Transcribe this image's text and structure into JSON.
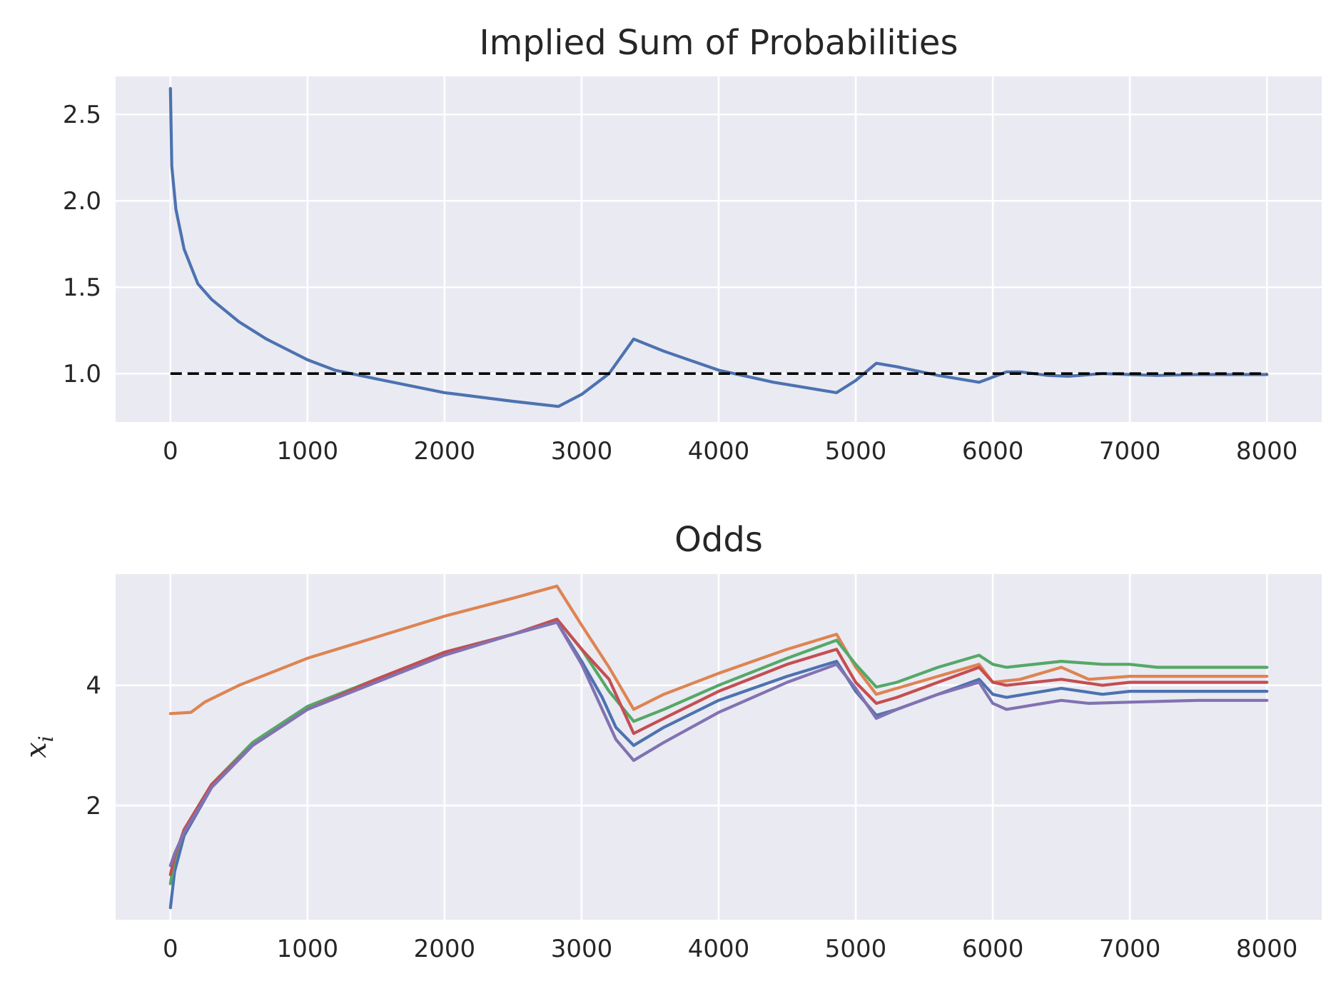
{
  "chart_data": [
    {
      "type": "line",
      "title": "Implied Sum of Probabilities",
      "xlabel": "",
      "ylabel": "",
      "xlim": [
        -400,
        8400
      ],
      "ylim": [
        0.72,
        2.72
      ],
      "xticks": [
        0,
        1000,
        2000,
        3000,
        4000,
        5000,
        6000,
        7000,
        8000
      ],
      "yticks": [
        1.0,
        1.5,
        2.0,
        2.5
      ],
      "xtick_labels": [
        "0",
        "1000",
        "2000",
        "3000",
        "4000",
        "5000",
        "6000",
        "7000",
        "8000"
      ],
      "ytick_labels": [
        "1.0",
        "1.5",
        "2.0",
        "2.5"
      ],
      "grid": true,
      "series": [
        {
          "color": "#4c72b0",
          "style": "solid",
          "points": [
            [
              0,
              2.65
            ],
            [
              10,
              2.2
            ],
            [
              40,
              1.95
            ],
            [
              100,
              1.72
            ],
            [
              200,
              1.52
            ],
            [
              300,
              1.43
            ],
            [
              500,
              1.3
            ],
            [
              700,
              1.2
            ],
            [
              1000,
              1.08
            ],
            [
              1200,
              1.02
            ],
            [
              1500,
              0.97
            ],
            [
              2000,
              0.89
            ],
            [
              2500,
              0.84
            ],
            [
              2830,
              0.81
            ],
            [
              3000,
              0.88
            ],
            [
              3200,
              1.0
            ],
            [
              3380,
              1.2
            ],
            [
              3600,
              1.13
            ],
            [
              4000,
              1.02
            ],
            [
              4400,
              0.95
            ],
            [
              4860,
              0.89
            ],
            [
              5000,
              0.96
            ],
            [
              5150,
              1.06
            ],
            [
              5300,
              1.04
            ],
            [
              5600,
              0.99
            ],
            [
              5900,
              0.95
            ],
            [
              6000,
              0.98
            ],
            [
              6100,
              1.01
            ],
            [
              6200,
              1.01
            ],
            [
              6400,
              0.99
            ],
            [
              6550,
              0.985
            ],
            [
              6800,
              1.0
            ],
            [
              7000,
              0.995
            ],
            [
              7200,
              0.99
            ],
            [
              7500,
              0.995
            ],
            [
              8000,
              0.995
            ]
          ]
        },
        {
          "color": "#000000",
          "style": "dashed",
          "points": [
            [
              0,
              1.0
            ],
            [
              8000,
              1.0
            ]
          ]
        }
      ]
    },
    {
      "type": "line",
      "title": "Odds",
      "xlabel": "",
      "ylabel": "x",
      "ylabel_sub": "i",
      "xlim": [
        -400,
        8400
      ],
      "ylim": [
        0.1,
        5.85
      ],
      "xticks": [
        0,
        1000,
        2000,
        3000,
        4000,
        5000,
        6000,
        7000,
        8000
      ],
      "yticks": [
        2,
        4
      ],
      "xtick_labels": [
        "0",
        "1000",
        "2000",
        "3000",
        "4000",
        "5000",
        "6000",
        "7000",
        "8000"
      ],
      "ytick_labels": [
        "2",
        "4"
      ],
      "grid": true,
      "series": [
        {
          "color": "#4c72b0",
          "points": [
            [
              0,
              0.3
            ],
            [
              30,
              0.9
            ],
            [
              100,
              1.5
            ],
            [
              300,
              2.3
            ],
            [
              600,
              3.0
            ],
            [
              1000,
              3.6
            ],
            [
              1500,
              4.1
            ],
            [
              2000,
              4.55
            ],
            [
              2500,
              4.85
            ],
            [
              2820,
              5.05
            ],
            [
              3000,
              4.4
            ],
            [
              3150,
              3.8
            ],
            [
              3250,
              3.3
            ],
            [
              3380,
              3.0
            ],
            [
              3600,
              3.3
            ],
            [
              4000,
              3.75
            ],
            [
              4500,
              4.15
            ],
            [
              4860,
              4.4
            ],
            [
              5000,
              3.9
            ],
            [
              5150,
              3.5
            ],
            [
              5300,
              3.6
            ],
            [
              5600,
              3.85
            ],
            [
              5900,
              4.1
            ],
            [
              6000,
              3.85
            ],
            [
              6100,
              3.8
            ],
            [
              6500,
              3.95
            ],
            [
              6800,
              3.85
            ],
            [
              7000,
              3.9
            ],
            [
              7500,
              3.9
            ],
            [
              8000,
              3.9
            ]
          ]
        },
        {
          "color": "#dd8452",
          "points": [
            [
              0,
              3.53
            ],
            [
              150,
              3.55
            ],
            [
              250,
              3.72
            ],
            [
              500,
              4.0
            ],
            [
              1000,
              4.45
            ],
            [
              1500,
              4.8
            ],
            [
              2000,
              5.15
            ],
            [
              2500,
              5.45
            ],
            [
              2820,
              5.65
            ],
            [
              3000,
              5.0
            ],
            [
              3200,
              4.3
            ],
            [
              3380,
              3.6
            ],
            [
              3600,
              3.85
            ],
            [
              4000,
              4.2
            ],
            [
              4500,
              4.6
            ],
            [
              4860,
              4.85
            ],
            [
              5000,
              4.3
            ],
            [
              5150,
              3.85
            ],
            [
              5300,
              3.95
            ],
            [
              5600,
              4.15
            ],
            [
              5900,
              4.35
            ],
            [
              6000,
              4.05
            ],
            [
              6200,
              4.1
            ],
            [
              6500,
              4.3
            ],
            [
              6700,
              4.1
            ],
            [
              7000,
              4.15
            ],
            [
              7500,
              4.15
            ],
            [
              8000,
              4.15
            ]
          ]
        },
        {
          "color": "#55a868",
          "points": [
            [
              0,
              0.7
            ],
            [
              30,
              1.1
            ],
            [
              100,
              1.6
            ],
            [
              300,
              2.35
            ],
            [
              600,
              3.05
            ],
            [
              1000,
              3.65
            ],
            [
              1500,
              4.1
            ],
            [
              2000,
              4.55
            ],
            [
              2500,
              4.85
            ],
            [
              2820,
              5.1
            ],
            [
              3000,
              4.6
            ],
            [
              3200,
              3.9
            ],
            [
              3380,
              3.4
            ],
            [
              3600,
              3.6
            ],
            [
              4000,
              4.0
            ],
            [
              4500,
              4.45
            ],
            [
              4860,
              4.75
            ],
            [
              5000,
              4.35
            ],
            [
              5150,
              3.97
            ],
            [
              5300,
              4.05
            ],
            [
              5600,
              4.3
            ],
            [
              5900,
              4.5
            ],
            [
              6000,
              4.35
            ],
            [
              6100,
              4.3
            ],
            [
              6500,
              4.4
            ],
            [
              6800,
              4.35
            ],
            [
              7000,
              4.35
            ],
            [
              7200,
              4.3
            ],
            [
              7500,
              4.3
            ],
            [
              8000,
              4.3
            ]
          ]
        },
        {
          "color": "#c44e52",
          "points": [
            [
              0,
              0.85
            ],
            [
              30,
              1.15
            ],
            [
              100,
              1.6
            ],
            [
              300,
              2.35
            ],
            [
              600,
              3.0
            ],
            [
              1000,
              3.6
            ],
            [
              1500,
              4.1
            ],
            [
              2000,
              4.55
            ],
            [
              2500,
              4.85
            ],
            [
              2820,
              5.1
            ],
            [
              3000,
              4.6
            ],
            [
              3200,
              4.1
            ],
            [
              3380,
              3.2
            ],
            [
              3600,
              3.45
            ],
            [
              4000,
              3.9
            ],
            [
              4500,
              4.35
            ],
            [
              4860,
              4.6
            ],
            [
              5000,
              4.05
            ],
            [
              5150,
              3.7
            ],
            [
              5300,
              3.8
            ],
            [
              5600,
              4.05
            ],
            [
              5900,
              4.3
            ],
            [
              6000,
              4.05
            ],
            [
              6100,
              4.0
            ],
            [
              6500,
              4.1
            ],
            [
              6800,
              4.0
            ],
            [
              7000,
              4.05
            ],
            [
              7500,
              4.05
            ],
            [
              8000,
              4.05
            ]
          ]
        },
        {
          "color": "#8172b2",
          "points": [
            [
              0,
              1.0
            ],
            [
              30,
              1.2
            ],
            [
              100,
              1.55
            ],
            [
              300,
              2.3
            ],
            [
              600,
              3.0
            ],
            [
              1000,
              3.6
            ],
            [
              1500,
              4.05
            ],
            [
              2000,
              4.5
            ],
            [
              2500,
              4.85
            ],
            [
              2820,
              5.05
            ],
            [
              3000,
              4.35
            ],
            [
              3150,
              3.6
            ],
            [
              3250,
              3.1
            ],
            [
              3380,
              2.75
            ],
            [
              3600,
              3.05
            ],
            [
              4000,
              3.55
            ],
            [
              4500,
              4.05
            ],
            [
              4860,
              4.35
            ],
            [
              5000,
              3.95
            ],
            [
              5150,
              3.45
            ],
            [
              5300,
              3.6
            ],
            [
              5600,
              3.85
            ],
            [
              5900,
              4.05
            ],
            [
              6000,
              3.7
            ],
            [
              6100,
              3.6
            ],
            [
              6500,
              3.75
            ],
            [
              6700,
              3.7
            ],
            [
              7000,
              3.72
            ],
            [
              7500,
              3.75
            ],
            [
              8000,
              3.75
            ]
          ]
        }
      ]
    }
  ]
}
